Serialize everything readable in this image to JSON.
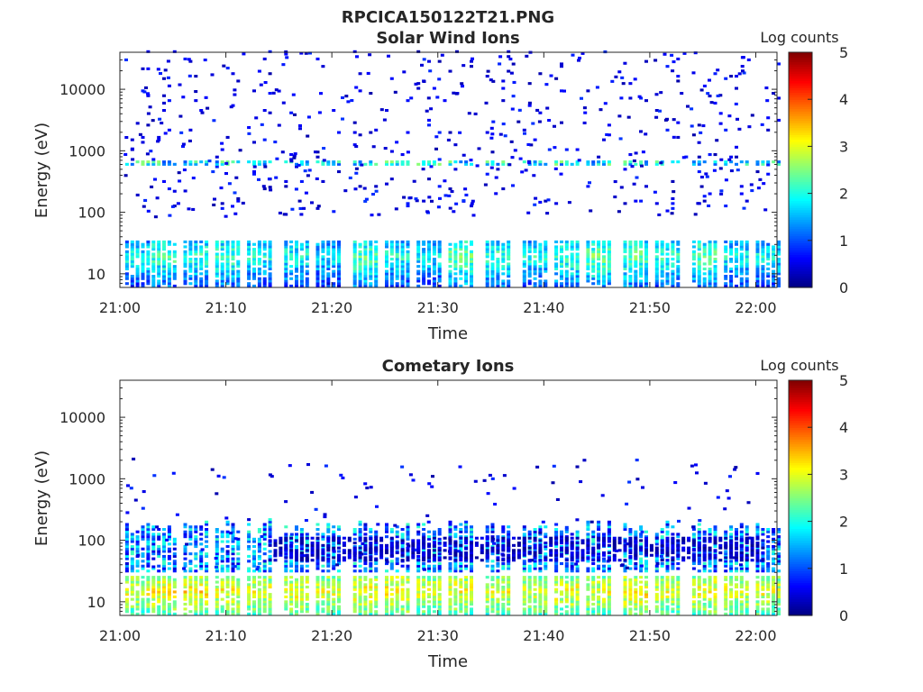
{
  "figure": {
    "title": "RPCICA150122T21.PNG"
  },
  "chart_data": [
    {
      "type": "heatmap",
      "title": "Solar Wind Ions",
      "xlabel": "Time",
      "ylabel": "Energy (eV)",
      "x_range": [
        "21:00",
        "22:02"
      ],
      "x_ticks": [
        "21:00",
        "21:10",
        "21:20",
        "21:30",
        "21:40",
        "21:50",
        "22:00"
      ],
      "y_scale": "log",
      "y_range": [
        6,
        40000
      ],
      "y_ticks": [
        10,
        100,
        1000,
        10000
      ],
      "y_tick_labels": [
        "10",
        "100",
        "1000",
        "10000"
      ],
      "colorbar": {
        "label": "Log counts",
        "range": [
          0,
          5
        ],
        "ticks": [
          "0",
          "1",
          "2",
          "3",
          "4",
          "5"
        ],
        "colormap": "jet"
      },
      "bursts": [
        {
          "t": 0.5,
          "peak_eV": 18,
          "peak_log": 1.9
        },
        {
          "t": 3.0,
          "peak_eV": 18,
          "peak_log": 2.2
        },
        {
          "t": 6.0,
          "peak_eV": 18,
          "peak_log": 2.1
        },
        {
          "t": 9.0,
          "peak_eV": 18,
          "peak_log": 2.2
        },
        {
          "t": 12.0,
          "peak_eV": 18,
          "peak_log": 2.0
        },
        {
          "t": 15.5,
          "peak_eV": 18,
          "peak_log": 2.0
        },
        {
          "t": 18.5,
          "peak_eV": 18,
          "peak_log": 1.8
        },
        {
          "t": 22.0,
          "peak_eV": 18,
          "peak_log": 2.3
        },
        {
          "t": 25.0,
          "peak_eV": 18,
          "peak_log": 2.0
        },
        {
          "t": 28.0,
          "peak_eV": 18,
          "peak_log": 1.9
        },
        {
          "t": 31.0,
          "peak_eV": 18,
          "peak_log": 2.4
        },
        {
          "t": 34.5,
          "peak_eV": 18,
          "peak_log": 2.2
        },
        {
          "t": 38.0,
          "peak_eV": 18,
          "peak_log": 2.0
        },
        {
          "t": 41.0,
          "peak_eV": 18,
          "peak_log": 2.2
        },
        {
          "t": 44.0,
          "peak_eV": 18,
          "peak_log": 2.4
        },
        {
          "t": 47.5,
          "peak_eV": 18,
          "peak_log": 2.3
        },
        {
          "t": 50.5,
          "peak_eV": 18,
          "peak_log": 2.1
        },
        {
          "t": 54.0,
          "peak_eV": 18,
          "peak_log": 2.3
        },
        {
          "t": 57.0,
          "peak_eV": 18,
          "peak_log": 1.9
        },
        {
          "t": 60.0,
          "peak_eV": 18,
          "peak_log": 1.9
        }
      ]
    },
    {
      "type": "heatmap",
      "title": "Cometary Ions",
      "xlabel": "Time",
      "ylabel": "Energy (eV)",
      "x_range": [
        "21:00",
        "22:02"
      ],
      "x_ticks": [
        "21:00",
        "21:10",
        "21:20",
        "21:30",
        "21:40",
        "21:50",
        "22:00"
      ],
      "y_scale": "log",
      "y_range": [
        6,
        40000
      ],
      "y_ticks": [
        10,
        100,
        1000,
        10000
      ],
      "y_tick_labels": [
        "10",
        "100",
        "1000",
        "10000"
      ],
      "colorbar": {
        "label": "Log counts",
        "range": [
          0,
          5
        ],
        "ticks": [
          "0",
          "1",
          "2",
          "3",
          "4",
          "5"
        ],
        "colormap": "jet"
      },
      "bursts": [
        {
          "t": 0.5,
          "peak_eV": 14,
          "peak_log": 3.0
        },
        {
          "t": 3.0,
          "peak_eV": 14,
          "peak_log": 3.1
        },
        {
          "t": 6.0,
          "peak_eV": 14,
          "peak_log": 3.2
        },
        {
          "t": 9.0,
          "peak_eV": 14,
          "peak_log": 3.1
        },
        {
          "t": 12.0,
          "peak_eV": 14,
          "peak_log": 3.0
        },
        {
          "t": 15.5,
          "peak_eV": 14,
          "peak_log": 3.1
        },
        {
          "t": 18.5,
          "peak_eV": 14,
          "peak_log": 3.0
        },
        {
          "t": 22.0,
          "peak_eV": 14,
          "peak_log": 3.1
        },
        {
          "t": 25.0,
          "peak_eV": 14,
          "peak_log": 3.2
        },
        {
          "t": 28.0,
          "peak_eV": 14,
          "peak_log": 3.0
        },
        {
          "t": 31.0,
          "peak_eV": 14,
          "peak_log": 3.1
        },
        {
          "t": 34.5,
          "peak_eV": 14,
          "peak_log": 3.0
        },
        {
          "t": 38.0,
          "peak_eV": 14,
          "peak_log": 3.0
        },
        {
          "t": 41.0,
          "peak_eV": 14,
          "peak_log": 3.1
        },
        {
          "t": 44.0,
          "peak_eV": 14,
          "peak_log": 3.0
        },
        {
          "t": 47.5,
          "peak_eV": 14,
          "peak_log": 3.2
        },
        {
          "t": 50.5,
          "peak_eV": 14,
          "peak_log": 3.0
        },
        {
          "t": 54.0,
          "peak_eV": 14,
          "peak_log": 3.1
        },
        {
          "t": 57.0,
          "peak_eV": 14,
          "peak_log": 3.0
        },
        {
          "t": 60.0,
          "peak_eV": 14,
          "peak_log": 3.0
        }
      ]
    }
  ]
}
